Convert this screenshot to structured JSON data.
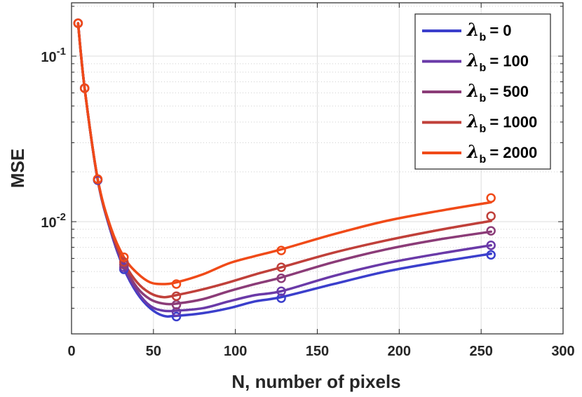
{
  "chart_data": {
    "type": "line",
    "xlabel": "N, number of pixels",
    "ylabel": "MSE",
    "xlim": [
      0,
      300
    ],
    "ylim": [
      0.0021,
      0.21
    ],
    "yscale": "log",
    "grid": true,
    "legend_position": "top-right",
    "x_ticks": [
      0,
      50,
      100,
      150,
      200,
      250,
      300
    ],
    "x_tick_labels": [
      "0",
      "50",
      "100",
      "150",
      "200",
      "250",
      "300"
    ],
    "y_major_ticks": [
      {
        "value": 0.01,
        "base": "10",
        "exp": "-2"
      },
      {
        "value": 0.1,
        "base": "10",
        "exp": "-1"
      }
    ],
    "x": [
      4,
      8,
      16,
      32,
      64,
      128,
      256
    ],
    "series": [
      {
        "legend_symbol": "λ",
        "legend_sub": "b",
        "legend_value": "= 0",
        "color": "#3b3fcc",
        "marker_values": [
          0.158,
          0.064,
          0.0178,
          0.00515,
          0.00267,
          0.00345,
          0.0063
        ],
        "curve_x": [
          4,
          8,
          16,
          24,
          32,
          40,
          48,
          56,
          64,
          80,
          96,
          112,
          128,
          160,
          192,
          224,
          256
        ],
        "curve_y": [
          0.158,
          0.064,
          0.0178,
          0.0087,
          0.0052,
          0.0037,
          0.003,
          0.0027,
          0.0027,
          0.0028,
          0.003,
          0.0033,
          0.0035,
          0.0042,
          0.005,
          0.0057,
          0.0064
        ]
      },
      {
        "legend_symbol": "λ",
        "legend_sub": "b",
        "legend_value": "= 100",
        "color": "#6a3aa8",
        "marker_values": [
          0.158,
          0.064,
          0.0179,
          0.0053,
          0.00285,
          0.0038,
          0.0072
        ],
        "curve_x": [
          4,
          8,
          16,
          24,
          32,
          40,
          48,
          56,
          64,
          80,
          96,
          112,
          128,
          160,
          192,
          224,
          256
        ],
        "curve_y": [
          0.158,
          0.064,
          0.0179,
          0.0088,
          0.0053,
          0.0038,
          0.0031,
          0.0029,
          0.0029,
          0.003,
          0.0033,
          0.0036,
          0.0038,
          0.0047,
          0.0056,
          0.0064,
          0.0072
        ]
      },
      {
        "legend_symbol": "λ",
        "legend_sub": "b",
        "legend_value": "= 500",
        "color": "#8b3c78",
        "marker_values": [
          0.158,
          0.064,
          0.018,
          0.0055,
          0.00315,
          0.00455,
          0.0088
        ],
        "curve_x": [
          4,
          8,
          16,
          24,
          32,
          40,
          48,
          56,
          64,
          80,
          96,
          112,
          128,
          160,
          192,
          224,
          256
        ],
        "curve_y": [
          0.158,
          0.064,
          0.018,
          0.0089,
          0.0055,
          0.004,
          0.0034,
          0.0032,
          0.0032,
          0.0034,
          0.0038,
          0.0042,
          0.0046,
          0.0057,
          0.0068,
          0.0078,
          0.0087
        ]
      },
      {
        "legend_symbol": "λ",
        "legend_sub": "b",
        "legend_value": "= 1000",
        "color": "#c0403a",
        "marker_values": [
          0.158,
          0.064,
          0.018,
          0.0057,
          0.00355,
          0.0053,
          0.0108
        ],
        "curve_x": [
          4,
          8,
          16,
          24,
          32,
          40,
          48,
          56,
          64,
          80,
          96,
          112,
          128,
          160,
          192,
          224,
          256
        ],
        "curve_y": [
          0.158,
          0.064,
          0.018,
          0.009,
          0.0057,
          0.0043,
          0.0037,
          0.0035,
          0.0036,
          0.0039,
          0.0043,
          0.0048,
          0.0053,
          0.0065,
          0.0077,
          0.0089,
          0.0101
        ]
      },
      {
        "legend_symbol": "λ",
        "legend_sub": "b",
        "legend_value": "= 2000",
        "color": "#f04a18",
        "marker_values": [
          0.158,
          0.064,
          0.0181,
          0.0061,
          0.0042,
          0.0067,
          0.0139
        ],
        "curve_x": [
          4,
          8,
          16,
          24,
          32,
          40,
          48,
          56,
          64,
          80,
          96,
          112,
          128,
          160,
          192,
          224,
          256
        ],
        "curve_y": [
          0.158,
          0.064,
          0.0181,
          0.0092,
          0.0061,
          0.0049,
          0.0043,
          0.0042,
          0.0043,
          0.0048,
          0.0056,
          0.0062,
          0.0068,
          0.0084,
          0.0101,
          0.0116,
          0.0131
        ]
      }
    ]
  }
}
